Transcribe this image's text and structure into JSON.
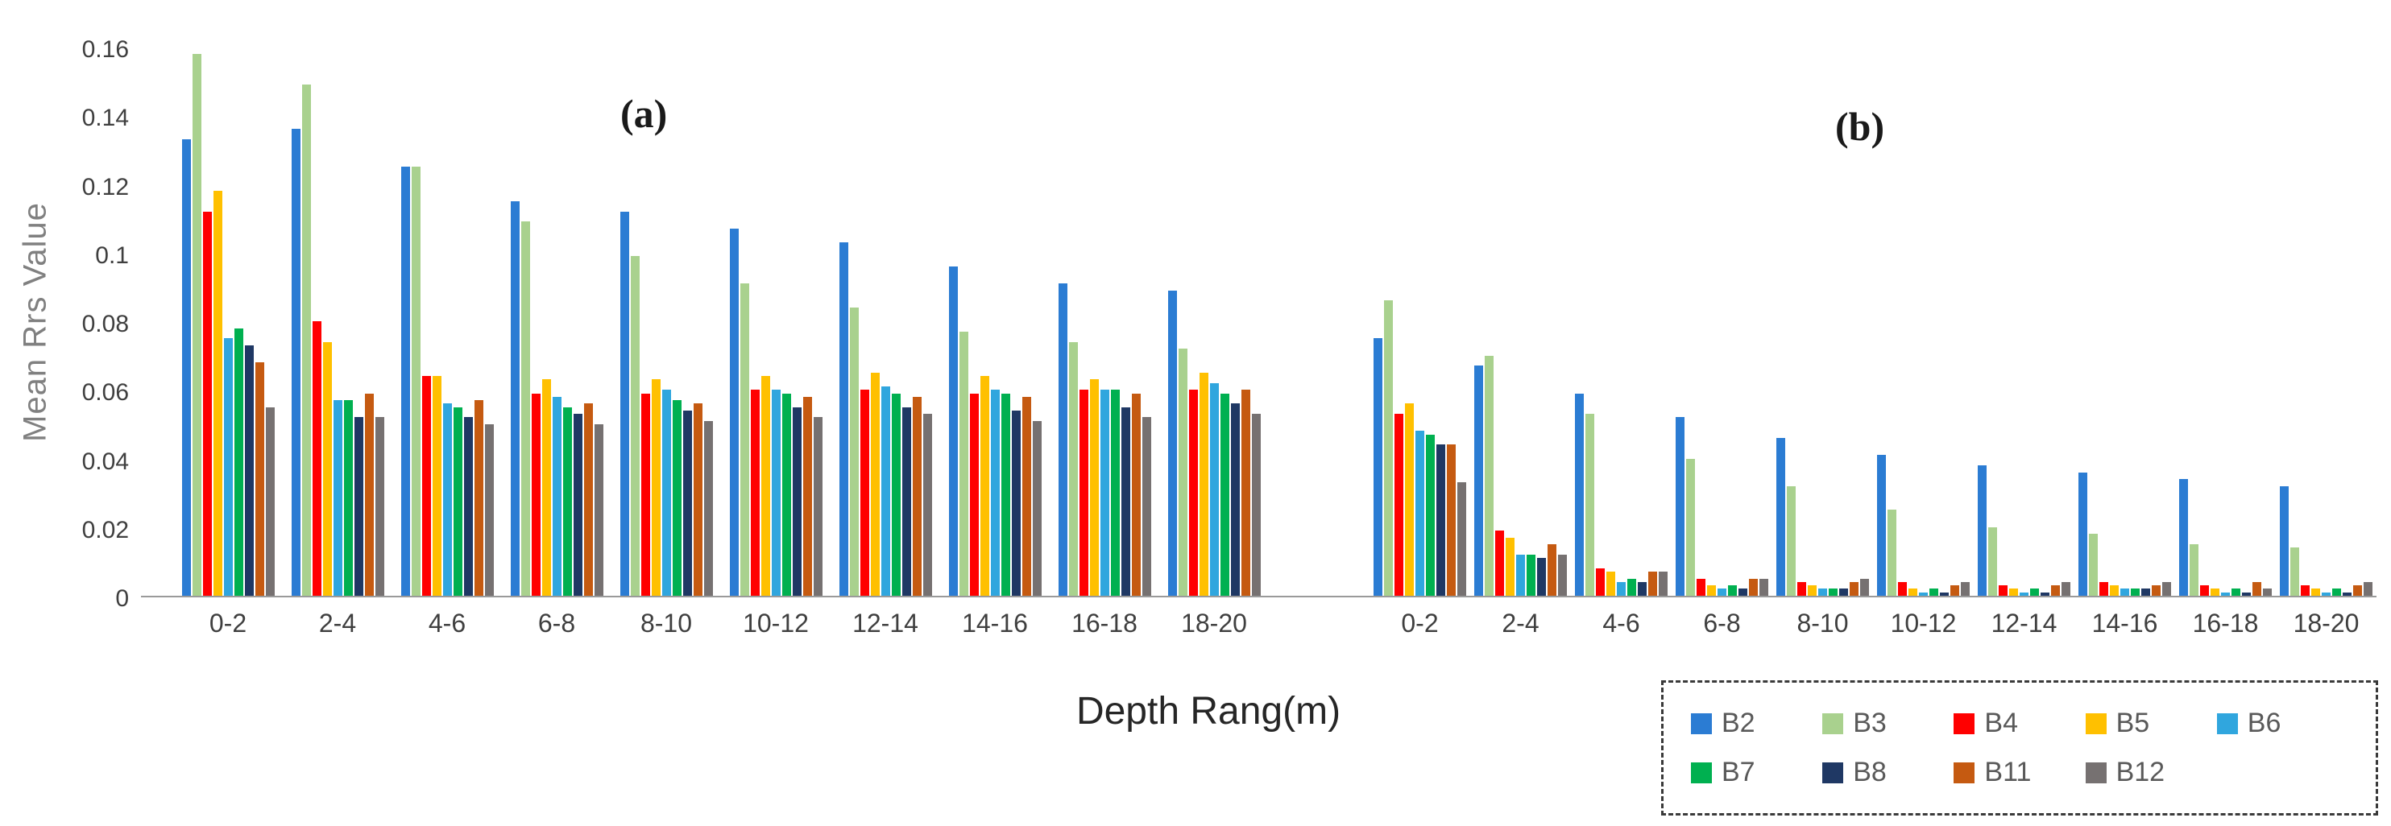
{
  "chart_data": {
    "type": "bar",
    "title": "",
    "ylabel": "Mean Rrs Value",
    "xlabel": "Depth Rang(m)",
    "ylim": [
      0,
      0.16
    ],
    "grid": false,
    "legend_position": "bottom-right",
    "yticks": [
      {
        "value": 0.16,
        "label": "0.16"
      },
      {
        "value": 0.14,
        "label": "0.14"
      },
      {
        "value": 0.12,
        "label": "0.12"
      },
      {
        "value": 0.1,
        "label": "0.1"
      },
      {
        "value": 0.08,
        "label": "0.08"
      },
      {
        "value": 0.06,
        "label": "0.06"
      },
      {
        "value": 0.04,
        "label": "0.04"
      },
      {
        "value": 0.02,
        "label": "0.02"
      },
      {
        "value": 0.0,
        "label": "0"
      }
    ],
    "categories": [
      "0-2",
      "2-4",
      "4-6",
      "6-8",
      "8-10",
      "10-12",
      "12-14",
      "14-16",
      "16-18",
      "18-20"
    ],
    "series": [
      {
        "name": "B2",
        "color": "#2B7CD3"
      },
      {
        "name": "B3",
        "color": "#A9D18E"
      },
      {
        "name": "B4",
        "color": "#FF0000"
      },
      {
        "name": "B5",
        "color": "#FFC000"
      },
      {
        "name": "B6",
        "color": "#30A6DE"
      },
      {
        "name": "B7",
        "color": "#00B050"
      },
      {
        "name": "B8",
        "color": "#1F3864"
      },
      {
        "name": "B11",
        "color": "#C55A11"
      },
      {
        "name": "B12",
        "color": "#767171"
      }
    ],
    "panels": [
      {
        "label": "(a)",
        "values": {
          "B2": [
            0.133,
            0.136,
            0.125,
            0.115,
            0.112,
            0.107,
            0.103,
            0.096,
            0.091,
            0.089
          ],
          "B3": [
            0.158,
            0.149,
            0.125,
            0.109,
            0.099,
            0.091,
            0.084,
            0.077,
            0.074,
            0.072
          ],
          "B4": [
            0.112,
            0.08,
            0.064,
            0.059,
            0.059,
            0.06,
            0.06,
            0.059,
            0.06,
            0.06
          ],
          "B5": [
            0.118,
            0.074,
            0.064,
            0.063,
            0.063,
            0.064,
            0.065,
            0.064,
            0.063,
            0.065
          ],
          "B6": [
            0.075,
            0.057,
            0.056,
            0.058,
            0.06,
            0.06,
            0.061,
            0.06,
            0.06,
            0.062
          ],
          "B7": [
            0.078,
            0.057,
            0.055,
            0.055,
            0.057,
            0.059,
            0.059,
            0.059,
            0.06,
            0.059
          ],
          "B8": [
            0.073,
            0.052,
            0.052,
            0.053,
            0.054,
            0.055,
            0.055,
            0.054,
            0.055,
            0.056
          ],
          "B11": [
            0.068,
            0.059,
            0.057,
            0.056,
            0.056,
            0.058,
            0.058,
            0.058,
            0.059,
            0.06
          ],
          "B12": [
            0.055,
            0.052,
            0.05,
            0.05,
            0.051,
            0.052,
            0.053,
            0.051,
            0.052,
            0.053
          ]
        }
      },
      {
        "label": "(b)",
        "values": {
          "B2": [
            0.075,
            0.067,
            0.059,
            0.052,
            0.046,
            0.041,
            0.038,
            0.036,
            0.034,
            0.032
          ],
          "B3": [
            0.086,
            0.07,
            0.053,
            0.04,
            0.032,
            0.025,
            0.02,
            0.018,
            0.015,
            0.014
          ],
          "B4": [
            0.053,
            0.019,
            0.008,
            0.005,
            0.004,
            0.004,
            0.003,
            0.004,
            0.003,
            0.003
          ],
          "B5": [
            0.056,
            0.017,
            0.007,
            0.003,
            0.003,
            0.002,
            0.002,
            0.003,
            0.002,
            0.002
          ],
          "B6": [
            0.048,
            0.012,
            0.004,
            0.002,
            0.002,
            0.001,
            0.001,
            0.002,
            0.001,
            0.001
          ],
          "B7": [
            0.047,
            0.012,
            0.005,
            0.003,
            0.002,
            0.002,
            0.002,
            0.002,
            0.002,
            0.002
          ],
          "B8": [
            0.044,
            0.011,
            0.004,
            0.002,
            0.002,
            0.001,
            0.001,
            0.002,
            0.001,
            0.001
          ],
          "B11": [
            0.044,
            0.015,
            0.007,
            0.005,
            0.004,
            0.003,
            0.003,
            0.003,
            0.004,
            0.003
          ],
          "B12": [
            0.033,
            0.012,
            0.007,
            0.005,
            0.005,
            0.004,
            0.004,
            0.004,
            0.002,
            0.004
          ]
        }
      }
    ],
    "legend": {
      "rows": [
        [
          "B2",
          "B3",
          "B4",
          "B5",
          "B6"
        ],
        [
          "B7",
          "B8",
          "B11",
          "B12"
        ]
      ]
    }
  }
}
